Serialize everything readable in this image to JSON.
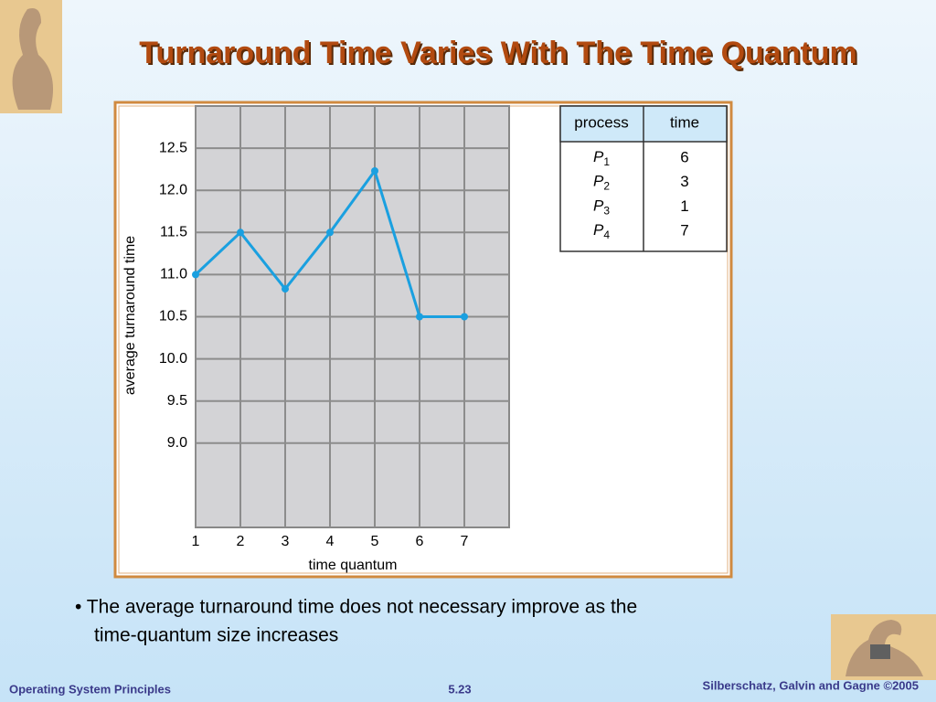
{
  "slide": {
    "title": "Turnaround Time Varies With The Time Quantum",
    "bullet": [
      "• The average turnaround time does not necessary improve as the",
      "time-quantum size increases"
    ],
    "footer_left": "Operating System Principles",
    "footer_center": "5.23",
    "footer_right": "Silberschatz, Galvin and Gagne ©2005"
  },
  "table": {
    "header": [
      "process",
      "time"
    ],
    "rows": [
      [
        "P1",
        "6"
      ],
      [
        "P2",
        "3"
      ],
      [
        "P3",
        "1"
      ],
      [
        "P4",
        "7"
      ]
    ]
  },
  "chart_data": {
    "type": "line",
    "x_label": "time quantum",
    "y_label": "average turnaround time",
    "x": [
      1,
      2,
      3,
      4,
      5,
      6,
      7
    ],
    "series": [
      {
        "color": "#1aa0e0",
        "values": [
          11.0,
          11.5,
          10.83,
          11.5,
          12.23,
          10.5,
          10.5
        ]
      }
    ],
    "xlim": [
      1,
      8
    ],
    "xticks": [
      1,
      2,
      3,
      4,
      5,
      6,
      7
    ],
    "ylim": [
      8.0,
      13.0
    ],
    "yticks": [
      {
        "value": 9,
        "label": "9.0"
      },
      9.5,
      {
        "value": 10,
        "label": "10.0"
      },
      10.5,
      {
        "value": 11,
        "label": "11.0"
      },
      11.5,
      {
        "value": 12,
        "label": "12.0"
      },
      12.5
    ],
    "grid": true
  }
}
